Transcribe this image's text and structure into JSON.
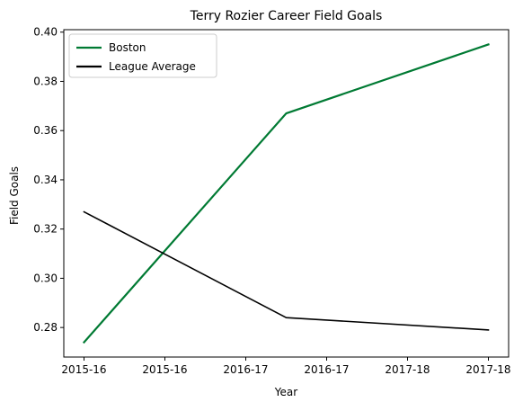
{
  "chart_data": {
    "type": "line",
    "title": "Terry Rozier Career Field Goals",
    "xlabel": "Year",
    "ylabel": "Field Goals",
    "x": [
      0,
      1,
      2
    ],
    "xticks": [
      0,
      0.4,
      0.8,
      1.2,
      1.6,
      2.0
    ],
    "xtick_labels": [
      "2015-16",
      "2015-16",
      "2016-17",
      "2016-17",
      "2017-18",
      "2017-18"
    ],
    "xlim": [
      -0.1,
      2.1
    ],
    "yticks": [
      0.28,
      0.3,
      0.32,
      0.34,
      0.36,
      0.38,
      0.4
    ],
    "ytick_labels": [
      "0.28",
      "0.30",
      "0.32",
      "0.34",
      "0.36",
      "0.38",
      "0.40"
    ],
    "ylim": [
      0.268,
      0.401
    ],
    "grid": false,
    "legend_position": "top-left",
    "series": [
      {
        "name": "Boston",
        "values": [
          0.274,
          0.367,
          0.395
        ],
        "color": "#007A33",
        "width": 2.2
      },
      {
        "name": "League Average",
        "values": [
          0.327,
          0.284,
          0.279
        ],
        "color": "#000000",
        "width": 1.6
      }
    ]
  }
}
